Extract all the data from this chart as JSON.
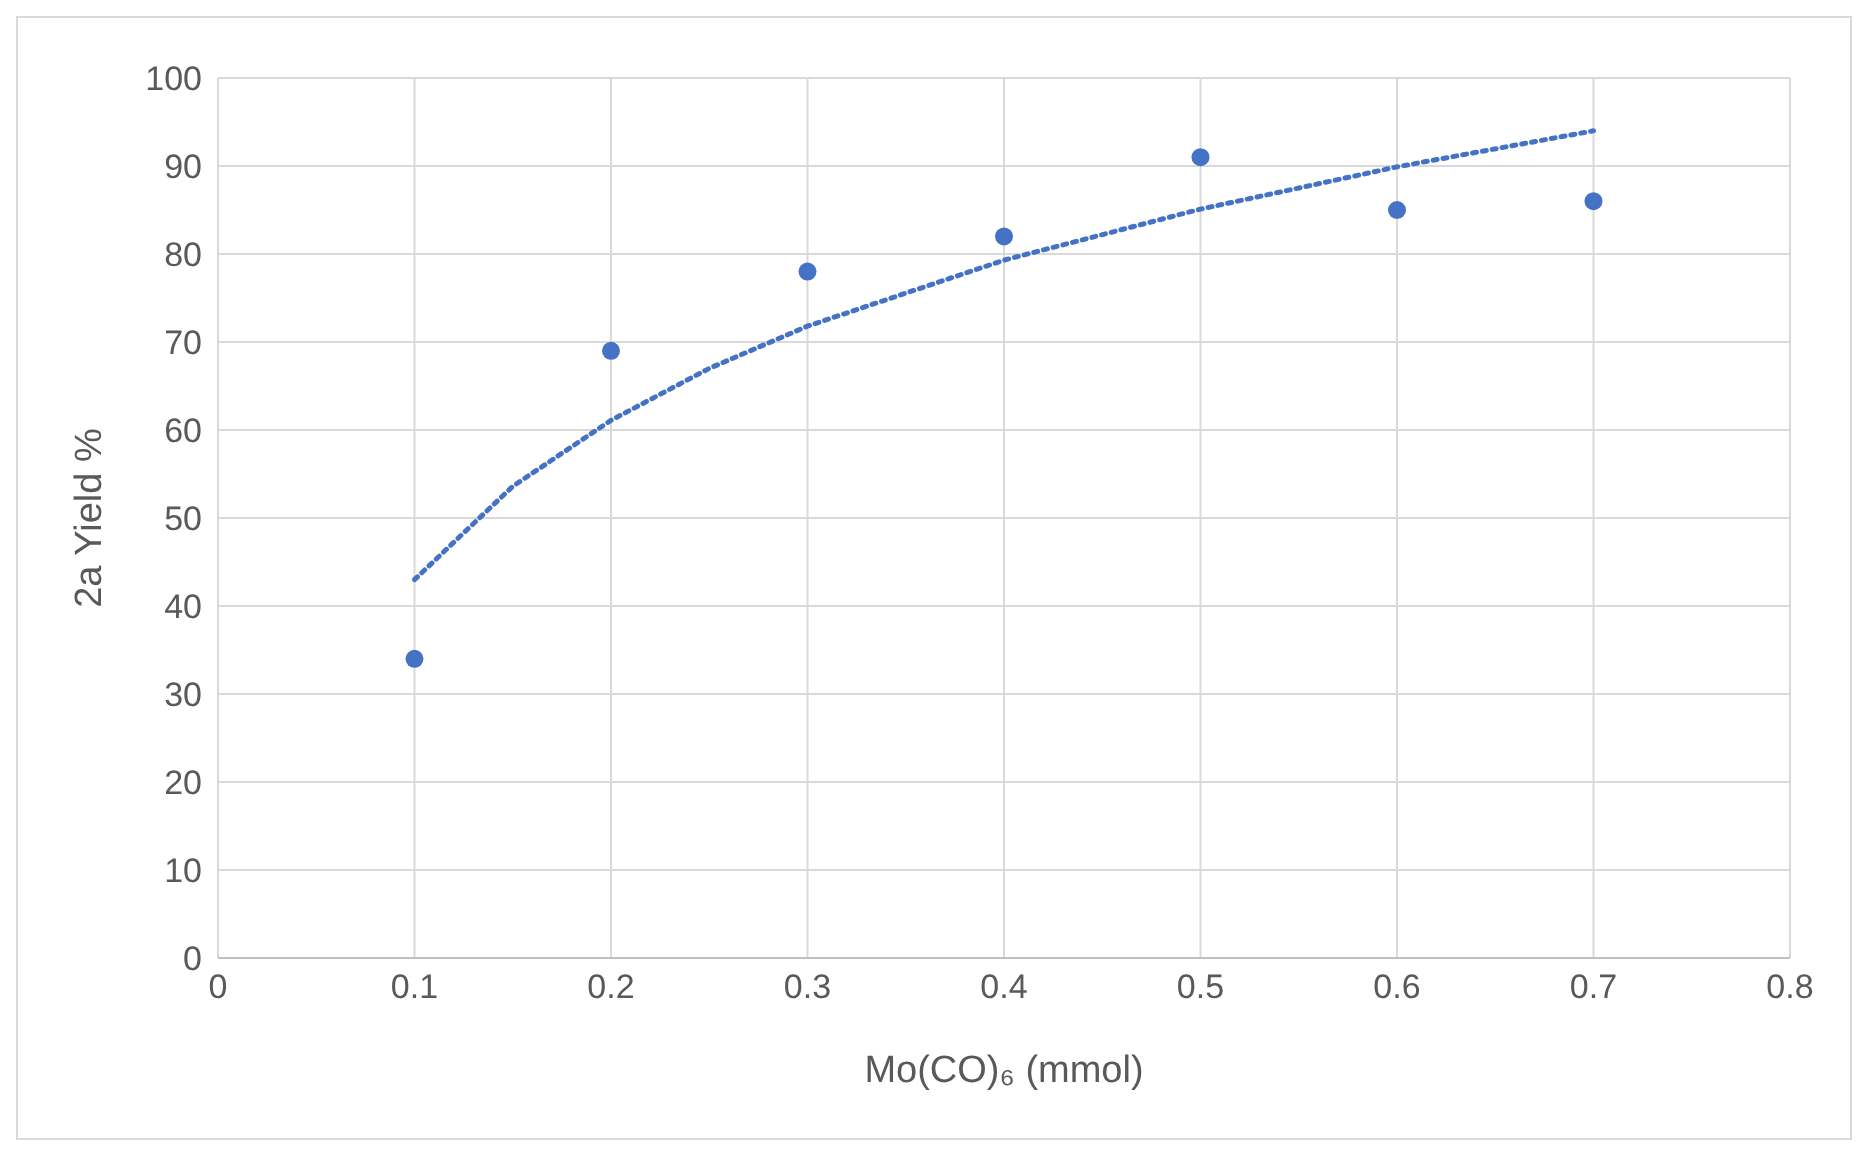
{
  "chart_data": {
    "type": "scatter",
    "xlabel": "Mo(CO)₆ (mmol)",
    "ylabel": "2a Yield %",
    "xlim": [
      0,
      0.8
    ],
    "xticks": [
      0,
      0.1,
      0.2,
      0.3,
      0.4,
      0.5,
      0.6,
      0.7,
      0.8
    ],
    "ylim": [
      0,
      100
    ],
    "yticks": [
      0,
      10,
      20,
      30,
      40,
      50,
      60,
      70,
      80,
      90,
      100
    ],
    "grid": true,
    "marker": "circle",
    "x": [
      0.1,
      0.2,
      0.3,
      0.4,
      0.5,
      0.6,
      0.7
    ],
    "series": [
      {
        "color": "#4472c4",
        "values": [
          34,
          69,
          78,
          82,
          91,
          85,
          86
        ]
      },
      {
        "type": "line",
        "color": "#4472c4",
        "line_style": "dotted",
        "marker": "none",
        "x": [
          0.1,
          0.15,
          0.2,
          0.25,
          0.3,
          0.4,
          0.5,
          0.6,
          0.7
        ],
        "values": [
          43,
          53.6,
          61.1,
          67,
          71.8,
          79.3,
          85.1,
          89.9,
          94
        ]
      }
    ]
  }
}
